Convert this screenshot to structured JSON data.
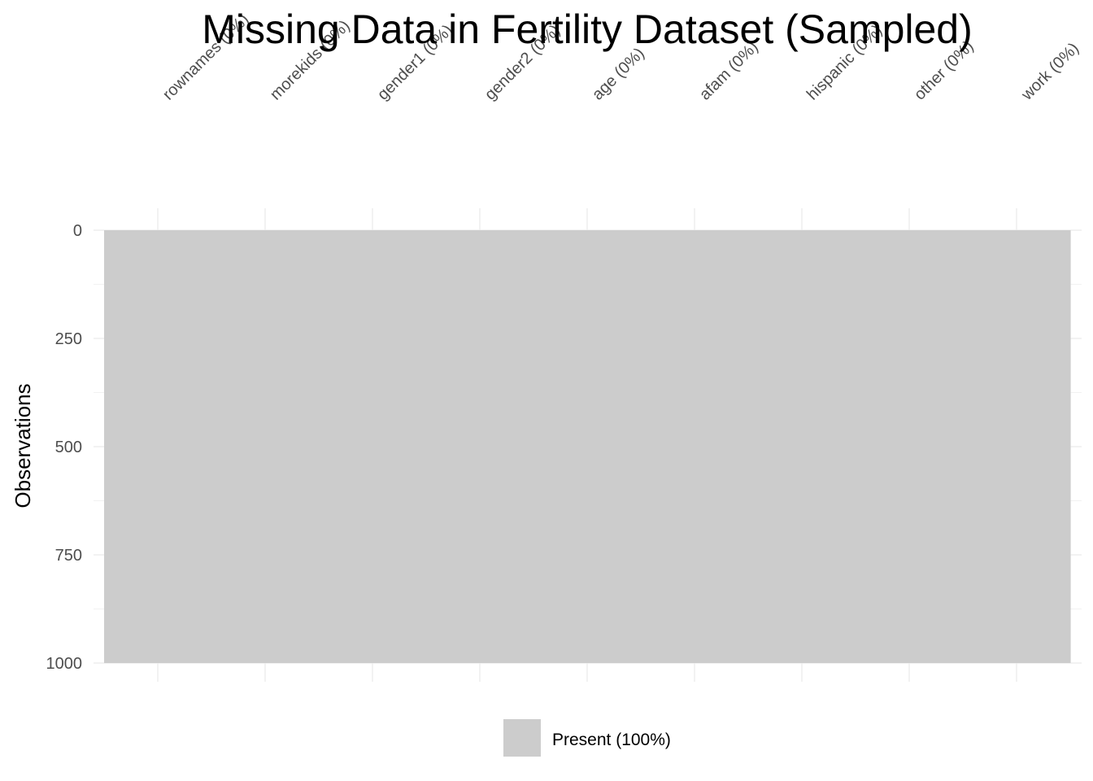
{
  "chart_data": {
    "type": "heatmap",
    "title": "Missing Data in Fertility Dataset (Sampled)",
    "xlabel": "",
    "ylabel": "Observations",
    "variables": [
      "rownames (0%)",
      "morekids (0%)",
      "gender1 (0%)",
      "gender2 (0%)",
      "age (0%)",
      "afam (0%)",
      "hispanic (0%)",
      "other (0%)",
      "work (0%)"
    ],
    "missing_percent": [
      0,
      0,
      0,
      0,
      0,
      0,
      0,
      0,
      0
    ],
    "n_observations": 1000,
    "ylim": [
      0,
      1000
    ],
    "y_ticks": [
      0,
      250,
      500,
      750,
      1000
    ],
    "y_reversed": true,
    "legend": {
      "position": "bottom",
      "entries": [
        {
          "label": "Present (100%)",
          "color": "#cccccc"
        }
      ]
    },
    "colors": {
      "present": "#cccccc",
      "grid": "#ebebeb"
    },
    "grid": true
  }
}
